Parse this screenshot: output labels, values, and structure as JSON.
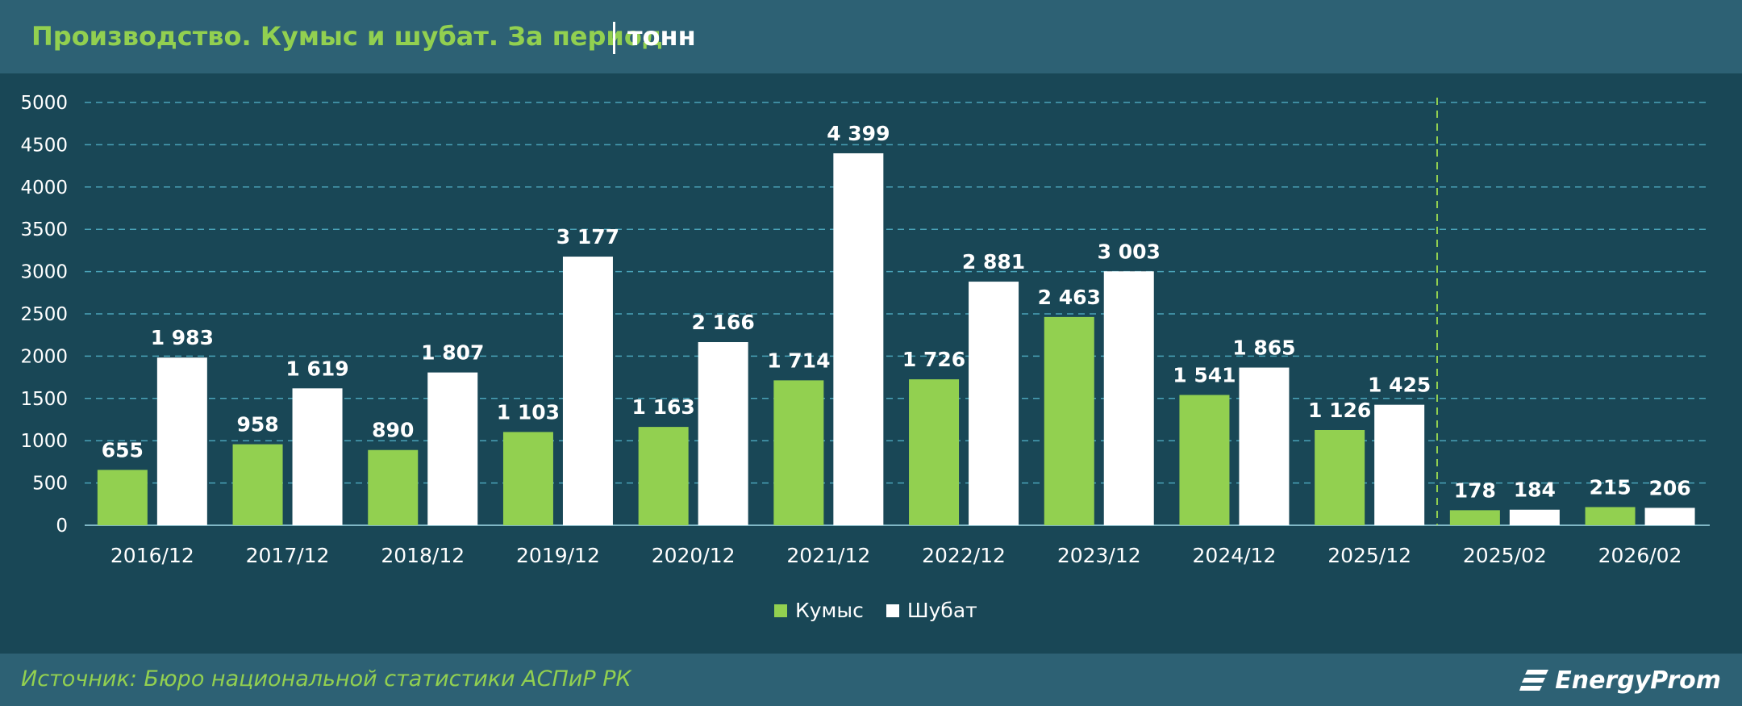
{
  "header": {
    "title": "Производство. Кумыс и шубат. За период",
    "unit": "тонн"
  },
  "footer": {
    "source": "Источник: Бюро национальной статистики АСПиР РК",
    "logo_text": "EnergyProm",
    "logo_icon": "energyprom-logo-icon"
  },
  "colors": {
    "background": "#194756",
    "header_bar": "#2d6174",
    "kumys": "#92d050",
    "shubat": "#ffffff",
    "grid": "#4aa3b8",
    "divider": "#92d050",
    "text": "#ffffff"
  },
  "chart_data": {
    "type": "bar",
    "title": "Производство. Кумыс и шубат. За период",
    "ylabel": "",
    "xlabel": "",
    "ylim": [
      0,
      5000
    ],
    "yticks": [
      0,
      500,
      1000,
      1500,
      2000,
      2500,
      3000,
      3500,
      4000,
      4500,
      5000
    ],
    "grid": true,
    "legend_position": "bottom",
    "categories": [
      "2016/12",
      "2017/12",
      "2018/12",
      "2019/12",
      "2020/12",
      "2021/12",
      "2022/12",
      "2023/12",
      "2024/12",
      "2025/12",
      "2025/02",
      "2026/02"
    ],
    "series": [
      {
        "name": "Кумыс",
        "values": [
          655,
          958,
          890,
          1103,
          1163,
          1714,
          1726,
          2463,
          1541,
          1126,
          178,
          215
        ],
        "labels": [
          "655",
          "958",
          "890",
          "1 103",
          "1 163",
          "1 714",
          "1 726",
          "2 463",
          "1 541",
          "1 126",
          "178",
          "215"
        ]
      },
      {
        "name": "Шубат",
        "values": [
          1983,
          1619,
          1807,
          3177,
          2166,
          4399,
          2881,
          3003,
          1865,
          1425,
          184,
          206
        ],
        "labels": [
          "1 983",
          "1 619",
          "1 807",
          "3 177",
          "2 166",
          "4 399",
          "2 881",
          "3 003",
          "1 865",
          "1 425",
          "184",
          "206"
        ]
      }
    ],
    "separator_after_category": "2025/12"
  }
}
